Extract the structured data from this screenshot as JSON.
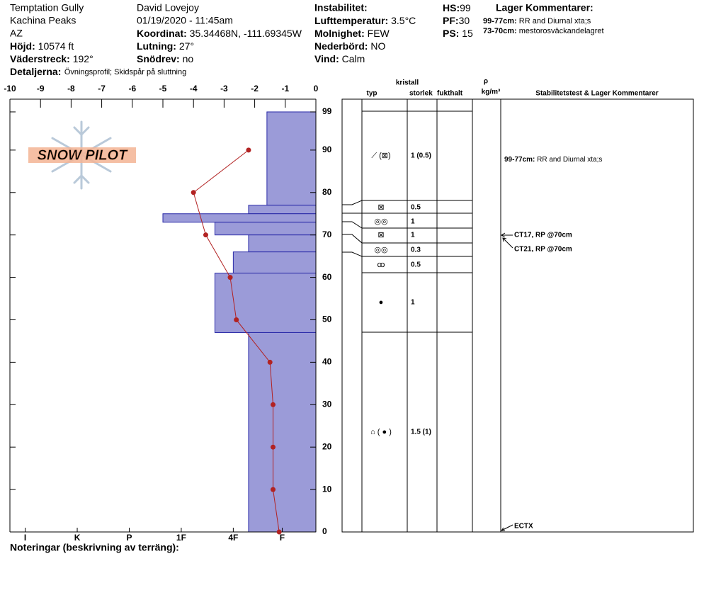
{
  "header": {
    "location": "Temptation Gully",
    "range": "Kachina Peaks",
    "state": "AZ",
    "elevation": {
      "label": "Höjd:",
      "value": "10574 ft"
    },
    "aspect": {
      "label": "Väderstreck:",
      "value": "192°"
    },
    "details": {
      "label": "Detaljerna:",
      "value": "Övningsprofil;  Skidspår på sluttning"
    },
    "observer": "David Lovejoy",
    "datetime": "01/19/2020 - 11:45am",
    "coordinates": {
      "label": "Koordinat:",
      "value": "35.34468N, -111.69345W"
    },
    "slope": {
      "label": "Lutning:",
      "value": "27°"
    },
    "wind_loading": {
      "label": "Snödrev:",
      "value": "no"
    },
    "instability": "Instabilitet:",
    "air_temp": {
      "label": "Lufttemperatur:",
      "value": "3.5°C"
    },
    "sky": {
      "label": "Molnighet:",
      "value": "FEW"
    },
    "precip": {
      "label": "Nederbörd:",
      "value": "NO"
    },
    "wind": {
      "label": "Vind:",
      "value": "Calm"
    },
    "hs": {
      "label": "HS:",
      "value": "99"
    },
    "pf": {
      "label": "PF:",
      "value": "30"
    },
    "ps": {
      "label": "PS:",
      "value": "15"
    },
    "layer_comments_title": "Lager Kommentarer:",
    "layer_comments": [
      {
        "label": "99-77cm:",
        "value": "RR and Diurnal xta;s"
      },
      {
        "label": "73-70cm:",
        "value": "mestorosväckandelagret"
      }
    ]
  },
  "chart_data": {
    "type": "snow-profile",
    "logo": "SNOW PILOT",
    "xlim": [
      -10,
      0
    ],
    "xticks": [
      -10,
      -9,
      -8,
      -7,
      -6,
      -5,
      -4,
      -3,
      -2,
      -1,
      0
    ],
    "ylim": [
      0,
      102
    ],
    "yticks": [
      0,
      10,
      20,
      30,
      40,
      50,
      60,
      70,
      80,
      90,
      99
    ],
    "hardness_ticks": [
      {
        "value": -9.5,
        "label": "I"
      },
      {
        "value": -7.8,
        "label": "K"
      },
      {
        "value": -6.1,
        "label": "P"
      },
      {
        "value": -4.4,
        "label": "1F"
      },
      {
        "value": -2.7,
        "label": "4F"
      },
      {
        "value": -1.1,
        "label": "F"
      }
    ],
    "layers": {
      "color": "#9b9bd8",
      "tops": [
        99,
        77,
        75,
        73,
        70,
        66,
        61,
        47
      ],
      "bottoms": [
        77,
        75,
        73,
        70,
        66,
        61,
        47,
        0
      ],
      "hardness": [
        -1.6,
        -2.2,
        -5,
        -3.3,
        -2.2,
        -2.7,
        -3.3,
        -2.2
      ]
    },
    "temperature": {
      "color": "#b22222",
      "heights": [
        90,
        80,
        70,
        60,
        50,
        40,
        30,
        20,
        10,
        0
      ],
      "values": [
        -2.2,
        -4,
        -3.6,
        -2.8,
        -2.6,
        -1.5,
        -1.4,
        -1.4,
        -1.4,
        -1.2
      ]
    },
    "notes_label": "Noteringar (beskrivning av terräng):"
  },
  "table": {
    "headers": {
      "crystal": "kristall",
      "type": "typ",
      "size": "storlek",
      "moisture": "fukthalt",
      "rho": "ρ",
      "density_unit": "kg/m³",
      "stability": "Stabilitetstest & Lager Kommentarer"
    },
    "rows": [
      {
        "type": "⟋ (⊠)",
        "size": "1 (0.5)"
      },
      {
        "type": "⊠",
        "size": "0.5"
      },
      {
        "type": "◎◎",
        "size": "1"
      },
      {
        "type": "⊠",
        "size": "1"
      },
      {
        "type": "◎◎",
        "size": "0.3"
      },
      {
        "type": "ꝏ",
        "size": "0.5"
      },
      {
        "type": "●",
        "size": "1"
      },
      {
        "type": "⌂ ( ● )",
        "size": "1.5 (1)"
      }
    ],
    "comment": {
      "label": "99-77cm:",
      "value": "RR and Diurnal xta;s"
    },
    "tests": [
      "CT17, RP @70cm",
      "CT21, RP @70cm",
      "ECTX"
    ]
  }
}
